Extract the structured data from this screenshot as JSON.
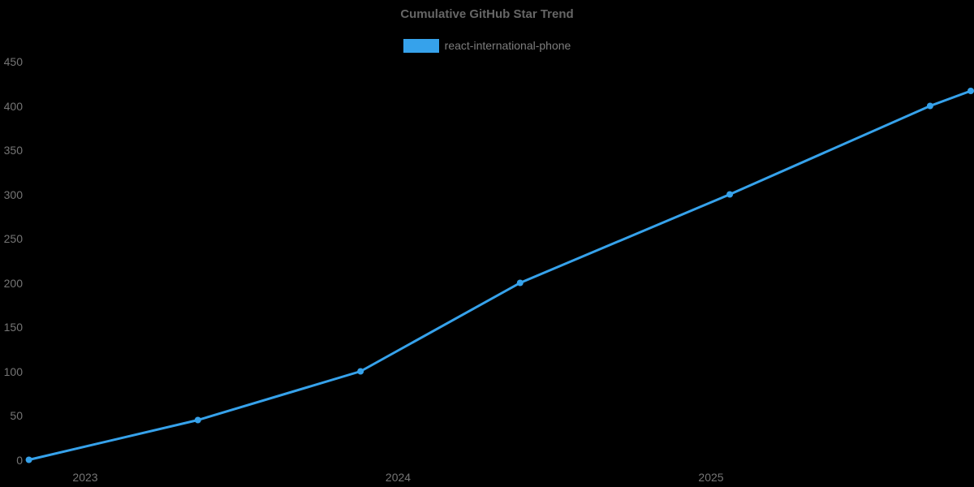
{
  "title": "Cumulative GitHub Star Trend",
  "legend": {
    "series_label": "react-international-phone",
    "swatch_color": "#36a2eb"
  },
  "colors": {
    "background": "#000000",
    "line": "#36a2eb",
    "point": "#36a2eb",
    "title_text": "#666666",
    "legend_text": "#7d7d7d",
    "tick_text": "#757575"
  },
  "chart_data": {
    "type": "line",
    "title": "Cumulative GitHub Star Trend",
    "xlabel": "",
    "ylabel": "",
    "x_tick_labels": [
      "2023",
      "2024",
      "2025"
    ],
    "x_tick_values": [
      2023,
      2024,
      2025
    ],
    "y_ticks": [
      0,
      50,
      100,
      150,
      200,
      250,
      300,
      350,
      400,
      450
    ],
    "ylim": [
      0,
      450
    ],
    "xlim_years": [
      2022.73,
      2025.84
    ],
    "grid": false,
    "legend_position": "top-center",
    "series": [
      {
        "name": "react-international-phone",
        "color": "#36a2eb",
        "points": [
          {
            "x_year": 2022.82,
            "approx_date": "2022-11",
            "stars": 0
          },
          {
            "x_year": 2023.36,
            "approx_date": "2023-05",
            "stars": 45
          },
          {
            "x_year": 2023.88,
            "approx_date": "2023-11",
            "stars": 100
          },
          {
            "x_year": 2024.39,
            "approx_date": "2024-05",
            "stars": 200
          },
          {
            "x_year": 2025.06,
            "approx_date": "2025-01",
            "stars": 300
          },
          {
            "x_year": 2025.7,
            "approx_date": "2025-09",
            "stars": 400
          },
          {
            "x_year": 2025.83,
            "approx_date": "2025-11",
            "stars": 417
          }
        ]
      }
    ]
  }
}
